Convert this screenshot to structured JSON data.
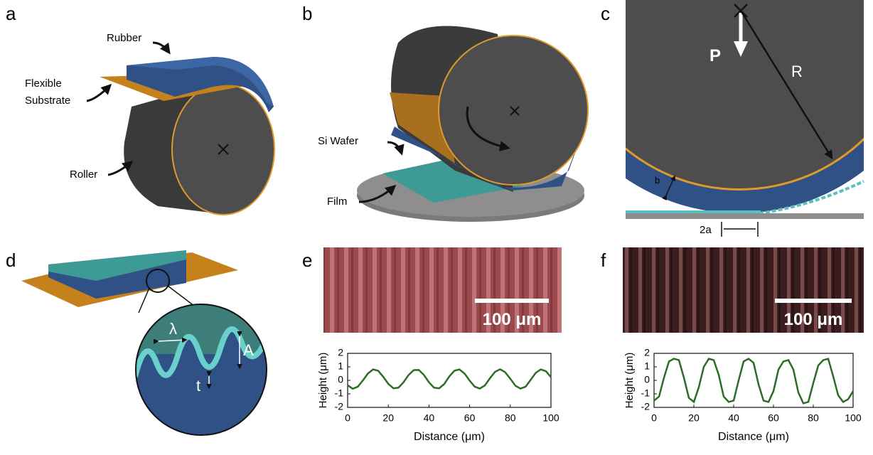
{
  "panels": {
    "a": {
      "label": "a",
      "rubber": "Rubber",
      "substrate": [
        "Flexible",
        "Substrate"
      ],
      "roller": "Roller"
    },
    "b": {
      "label": "b",
      "wafer": "Si Wafer",
      "film": "Film"
    },
    "c": {
      "label": "c",
      "force": "P",
      "radius": "R",
      "thickness": "b",
      "contact": "2a"
    },
    "d": {
      "label": "d",
      "wavelength": "λ",
      "amplitude": "A",
      "film": "t"
    },
    "e": {
      "label": "e",
      "scale_bar": "100 μm"
    },
    "f": {
      "label": "f",
      "scale_bar": "100 μm"
    }
  },
  "chart_data": [
    {
      "type": "line",
      "x_label": "Distance (μm)",
      "y_label": "Height (μm)",
      "x": [
        0,
        2.5,
        5,
        7.5,
        10,
        12.5,
        15,
        17.5,
        20,
        22.5,
        25,
        27.5,
        30,
        32.5,
        35,
        37.5,
        40,
        42.5,
        45,
        47.5,
        50,
        52.5,
        55,
        57.5,
        60,
        62.5,
        65,
        67.5,
        70,
        72.5,
        75,
        77.5,
        80,
        82.5,
        85,
        87.5,
        90,
        92.5,
        95,
        97.5,
        100
      ],
      "series": [
        {
          "color": "#2e6b26",
          "values": [
            -0.36,
            -0.62,
            -0.47,
            -0.01,
            0.51,
            0.81,
            0.71,
            0.27,
            -0.26,
            -0.59,
            -0.54,
            -0.14,
            0.4,
            0.76,
            0.77,
            0.4,
            -0.14,
            -0.54,
            -0.59,
            -0.27,
            0.29,
            0.71,
            0.81,
            0.5,
            -0.02,
            -0.47,
            -0.61,
            -0.38,
            0.16,
            0.63,
            0.82,
            0.6,
            0.12,
            -0.4,
            -0.61,
            -0.47,
            0.03,
            0.55,
            0.81,
            0.68,
            0.24
          ]
        }
      ],
      "xlim": [
        0,
        100
      ],
      "ylim": [
        -2,
        2
      ],
      "xticks": [
        0,
        20,
        40,
        60,
        80,
        100
      ],
      "yticks": [
        -2,
        -1,
        0,
        1,
        2
      ]
    },
    {
      "type": "line",
      "x_label": "Distance (μm)",
      "y_label": "Height (μm)",
      "x": [
        0,
        2.5,
        5,
        7.5,
        10,
        12.5,
        15,
        17.5,
        20,
        22.5,
        25,
        27.5,
        30,
        32.5,
        35,
        37.5,
        40,
        42.5,
        45,
        47.5,
        50,
        52.5,
        55,
        57.5,
        60,
        62.5,
        65,
        67.5,
        70,
        72.5,
        75,
        77.5,
        80,
        82.5,
        85,
        87.5,
        90,
        92.5,
        95,
        97.5,
        100
      ],
      "series": [
        {
          "color": "#2e6b26",
          "values": [
            -1.5,
            -1.2,
            0.2,
            1.4,
            1.6,
            1.5,
            0.2,
            -1.3,
            -1.6,
            -0.5,
            1.0,
            1.6,
            1.5,
            0.4,
            -1.2,
            -1.6,
            -1.5,
            0.0,
            1.4,
            1.6,
            1.3,
            -0.3,
            -1.5,
            -1.6,
            -0.8,
            0.8,
            1.4,
            1.5,
            0.8,
            -0.9,
            -1.7,
            -1.6,
            -0.2,
            1.1,
            1.5,
            1.6,
            0.3,
            -1.1,
            -1.6,
            -1.4,
            -0.8
          ]
        }
      ],
      "xlim": [
        0,
        100
      ],
      "ylim": [
        -2,
        2
      ],
      "xticks": [
        0,
        20,
        40,
        60,
        80,
        100
      ],
      "yticks": [
        -2,
        -1,
        0,
        1,
        2
      ]
    }
  ]
}
